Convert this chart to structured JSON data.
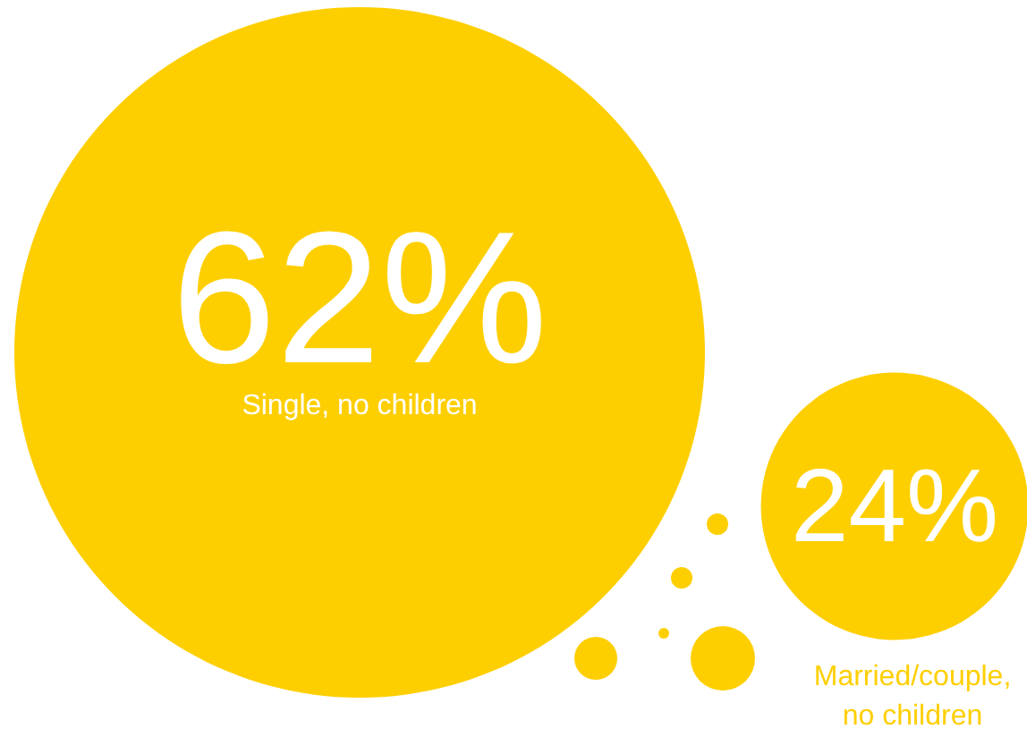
{
  "chart_data": {
    "type": "other",
    "categories": [
      "Single, no children",
      "Married/couple,\nno children"
    ],
    "values": [
      62,
      24
    ],
    "value_labels": [
      "62%",
      "24%"
    ],
    "colors": [
      "#fecf00",
      "#fecf00"
    ]
  }
}
